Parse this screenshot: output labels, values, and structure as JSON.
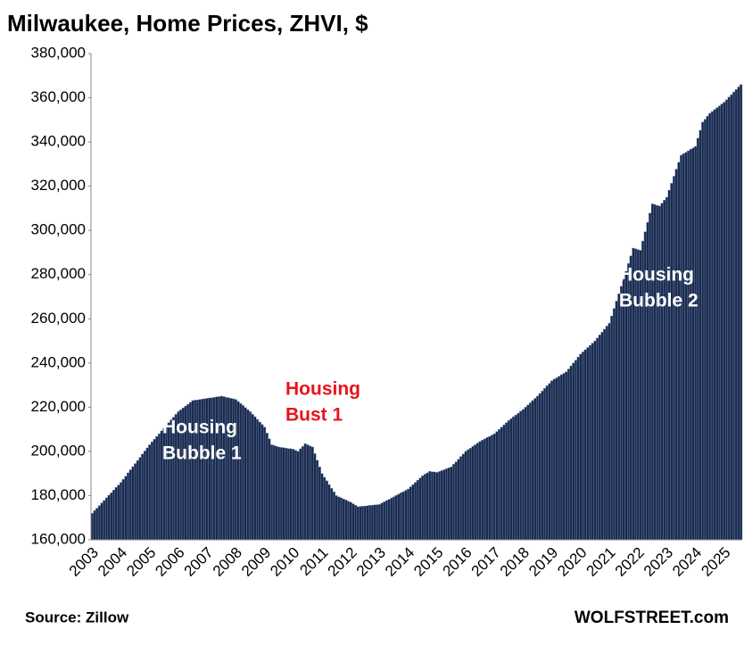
{
  "chart_data": {
    "type": "bar",
    "title": "Milwaukee, Home Prices, ZHVI, $",
    "source": "Source: Zillow",
    "credit": "WOLFSTREET.com",
    "color": "#1c2a4a",
    "edge_color": "#6f8fc4",
    "ylim": [
      160000,
      380000
    ],
    "yticks": [
      {
        "value": 160000,
        "label": "160,000"
      },
      {
        "value": 180000,
        "label": "180,000"
      },
      {
        "value": 200000,
        "label": "200,000"
      },
      {
        "value": 220000,
        "label": "220,000"
      },
      {
        "value": 240000,
        "label": "240,000"
      },
      {
        "value": 260000,
        "label": "260,000"
      },
      {
        "value": 280000,
        "label": "280,000"
      },
      {
        "value": 300000,
        "label": "300,000"
      },
      {
        "value": 320000,
        "label": "320,000"
      },
      {
        "value": 340000,
        "label": "340,000"
      },
      {
        "value": 360000,
        "label": "360,000"
      },
      {
        "value": 380000,
        "label": "380,000"
      }
    ],
    "annotations": [
      {
        "lines": [
          "Housing",
          "Bubble 1"
        ],
        "color": "#ffffff"
      },
      {
        "lines": [
          "Housing",
          "Bust 1"
        ],
        "color": "#e8141b"
      },
      {
        "lines": [
          "Housing",
          "Bubble 2"
        ],
        "color": "#ffffff"
      }
    ],
    "categories": [
      "2003",
      null,
      null,
      null,
      null,
      null,
      null,
      null,
      null,
      null,
      null,
      null,
      "2004",
      null,
      null,
      null,
      null,
      null,
      null,
      null,
      null,
      null,
      null,
      null,
      "2005",
      null,
      null,
      null,
      null,
      null,
      null,
      null,
      null,
      null,
      null,
      null,
      "2006",
      null,
      null,
      null,
      null,
      null,
      null,
      null,
      null,
      null,
      null,
      null,
      "2007",
      null,
      null,
      null,
      null,
      null,
      null,
      null,
      null,
      null,
      null,
      null,
      "2008",
      null,
      null,
      null,
      null,
      null,
      null,
      null,
      null,
      null,
      null,
      null,
      "2009",
      null,
      null,
      null,
      null,
      null,
      null,
      null,
      null,
      null,
      null,
      null,
      "2010",
      null,
      null,
      null,
      null,
      null,
      null,
      null,
      null,
      null,
      null,
      null,
      "2011",
      null,
      null,
      null,
      null,
      null,
      null,
      null,
      null,
      null,
      null,
      null,
      "2012",
      null,
      null,
      null,
      null,
      null,
      null,
      null,
      null,
      null,
      null,
      null,
      "2013",
      null,
      null,
      null,
      null,
      null,
      null,
      null,
      null,
      null,
      null,
      null,
      "2014",
      null,
      null,
      null,
      null,
      null,
      null,
      null,
      null,
      null,
      null,
      null,
      "2015",
      null,
      null,
      null,
      null,
      null,
      null,
      null,
      null,
      null,
      null,
      null,
      "2016",
      null,
      null,
      null,
      null,
      null,
      null,
      null,
      null,
      null,
      null,
      null,
      "2017",
      null,
      null,
      null,
      null,
      null,
      null,
      null,
      null,
      null,
      null,
      null,
      "2018",
      null,
      null,
      null,
      null,
      null,
      null,
      null,
      null,
      null,
      null,
      null,
      "2019",
      null,
      null,
      null,
      null,
      null,
      null,
      null,
      null,
      null,
      null,
      null,
      "2020",
      null,
      null,
      null,
      null,
      null,
      null,
      null,
      null,
      null,
      null,
      null,
      "2021",
      null,
      null,
      null,
      null,
      null,
      null,
      null,
      null,
      null,
      null,
      null,
      "2022",
      null,
      null,
      null,
      null,
      null,
      null,
      null,
      null,
      null,
      null,
      null,
      "2023",
      null,
      null,
      null,
      null,
      null,
      null,
      null,
      null,
      null,
      null,
      null,
      "2024",
      null,
      null,
      null,
      null,
      null,
      null,
      null,
      null,
      null,
      null,
      null,
      "2025",
      null,
      null,
      null,
      null,
      null,
      null,
      null
    ],
    "values": [
      172000,
      173200,
      174300,
      175500,
      176700,
      177800,
      179000,
      180200,
      181300,
      182500,
      183700,
      184800,
      186000,
      187400,
      188800,
      190300,
      191700,
      193100,
      194500,
      195900,
      197300,
      198800,
      200200,
      201600,
      203000,
      204300,
      205500,
      206800,
      208000,
      209300,
      210500,
      211800,
      213000,
      214300,
      215500,
      216800,
      218000,
      218800,
      219700,
      220500,
      221300,
      222200,
      223000,
      223200,
      223300,
      223500,
      223700,
      223800,
      224000,
      224200,
      224300,
      224500,
      224700,
      224800,
      225000,
      224800,
      224500,
      224300,
      224000,
      223800,
      223500,
      222600,
      221700,
      220800,
      219800,
      218900,
      218000,
      216800,
      215700,
      214500,
      213300,
      212200,
      211000,
      208300,
      205700,
      203000,
      202700,
      202300,
      202000,
      201800,
      201700,
      201500,
      201300,
      201200,
      201000,
      200500,
      200000,
      201200,
      202300,
      203500,
      203000,
      202500,
      202000,
      199000,
      196000,
      193000,
      190000,
      188300,
      186700,
      185000,
      183300,
      181700,
      180000,
      179500,
      179000,
      178500,
      178000,
      177500,
      177000,
      176300,
      175700,
      175000,
      175100,
      175200,
      175300,
      175400,
      175600,
      175700,
      175800,
      175900,
      176000,
      176600,
      177200,
      177800,
      178300,
      178900,
      179500,
      180100,
      180700,
      181300,
      181800,
      182400,
      183000,
      184000,
      185000,
      186000,
      187000,
      188000,
      189000,
      189700,
      190300,
      191000,
      190800,
      190700,
      190500,
      190900,
      191300,
      191700,
      192200,
      192600,
      193000,
      194200,
      195300,
      196500,
      197700,
      198800,
      200000,
      200800,
      201500,
      202300,
      203000,
      203800,
      204500,
      205100,
      205700,
      206300,
      206800,
      207400,
      208000,
      209000,
      210000,
      211000,
      212000,
      213000,
      214000,
      214800,
      215700,
      216500,
      217300,
      218200,
      219000,
      220000,
      221000,
      222000,
      223000,
      224000,
      225000,
      226200,
      227300,
      228500,
      229700,
      230800,
      232000,
      232700,
      233300,
      234000,
      234700,
      235300,
      236000,
      237300,
      238700,
      240000,
      241300,
      242700,
      244000,
      245000,
      246000,
      247000,
      248000,
      249000,
      250000,
      251300,
      252700,
      254000,
      255300,
      256700,
      258000,
      261300,
      264700,
      268000,
      271300,
      274700,
      278000,
      281500,
      285000,
      288500,
      292000,
      291700,
      291300,
      291000,
      295200,
      299400,
      303600,
      307800,
      312000,
      311700,
      311300,
      311000,
      312300,
      313700,
      315000,
      318200,
      321300,
      324500,
      327700,
      330800,
      334000,
      334700,
      335300,
      336000,
      336700,
      337300,
      338000,
      341700,
      345300,
      349000,
      350300,
      351700,
      353000,
      353800,
      354700,
      355500,
      356300,
      357200,
      358000,
      359100,
      360300,
      361400,
      362600,
      363700,
      364900,
      366000
    ]
  }
}
